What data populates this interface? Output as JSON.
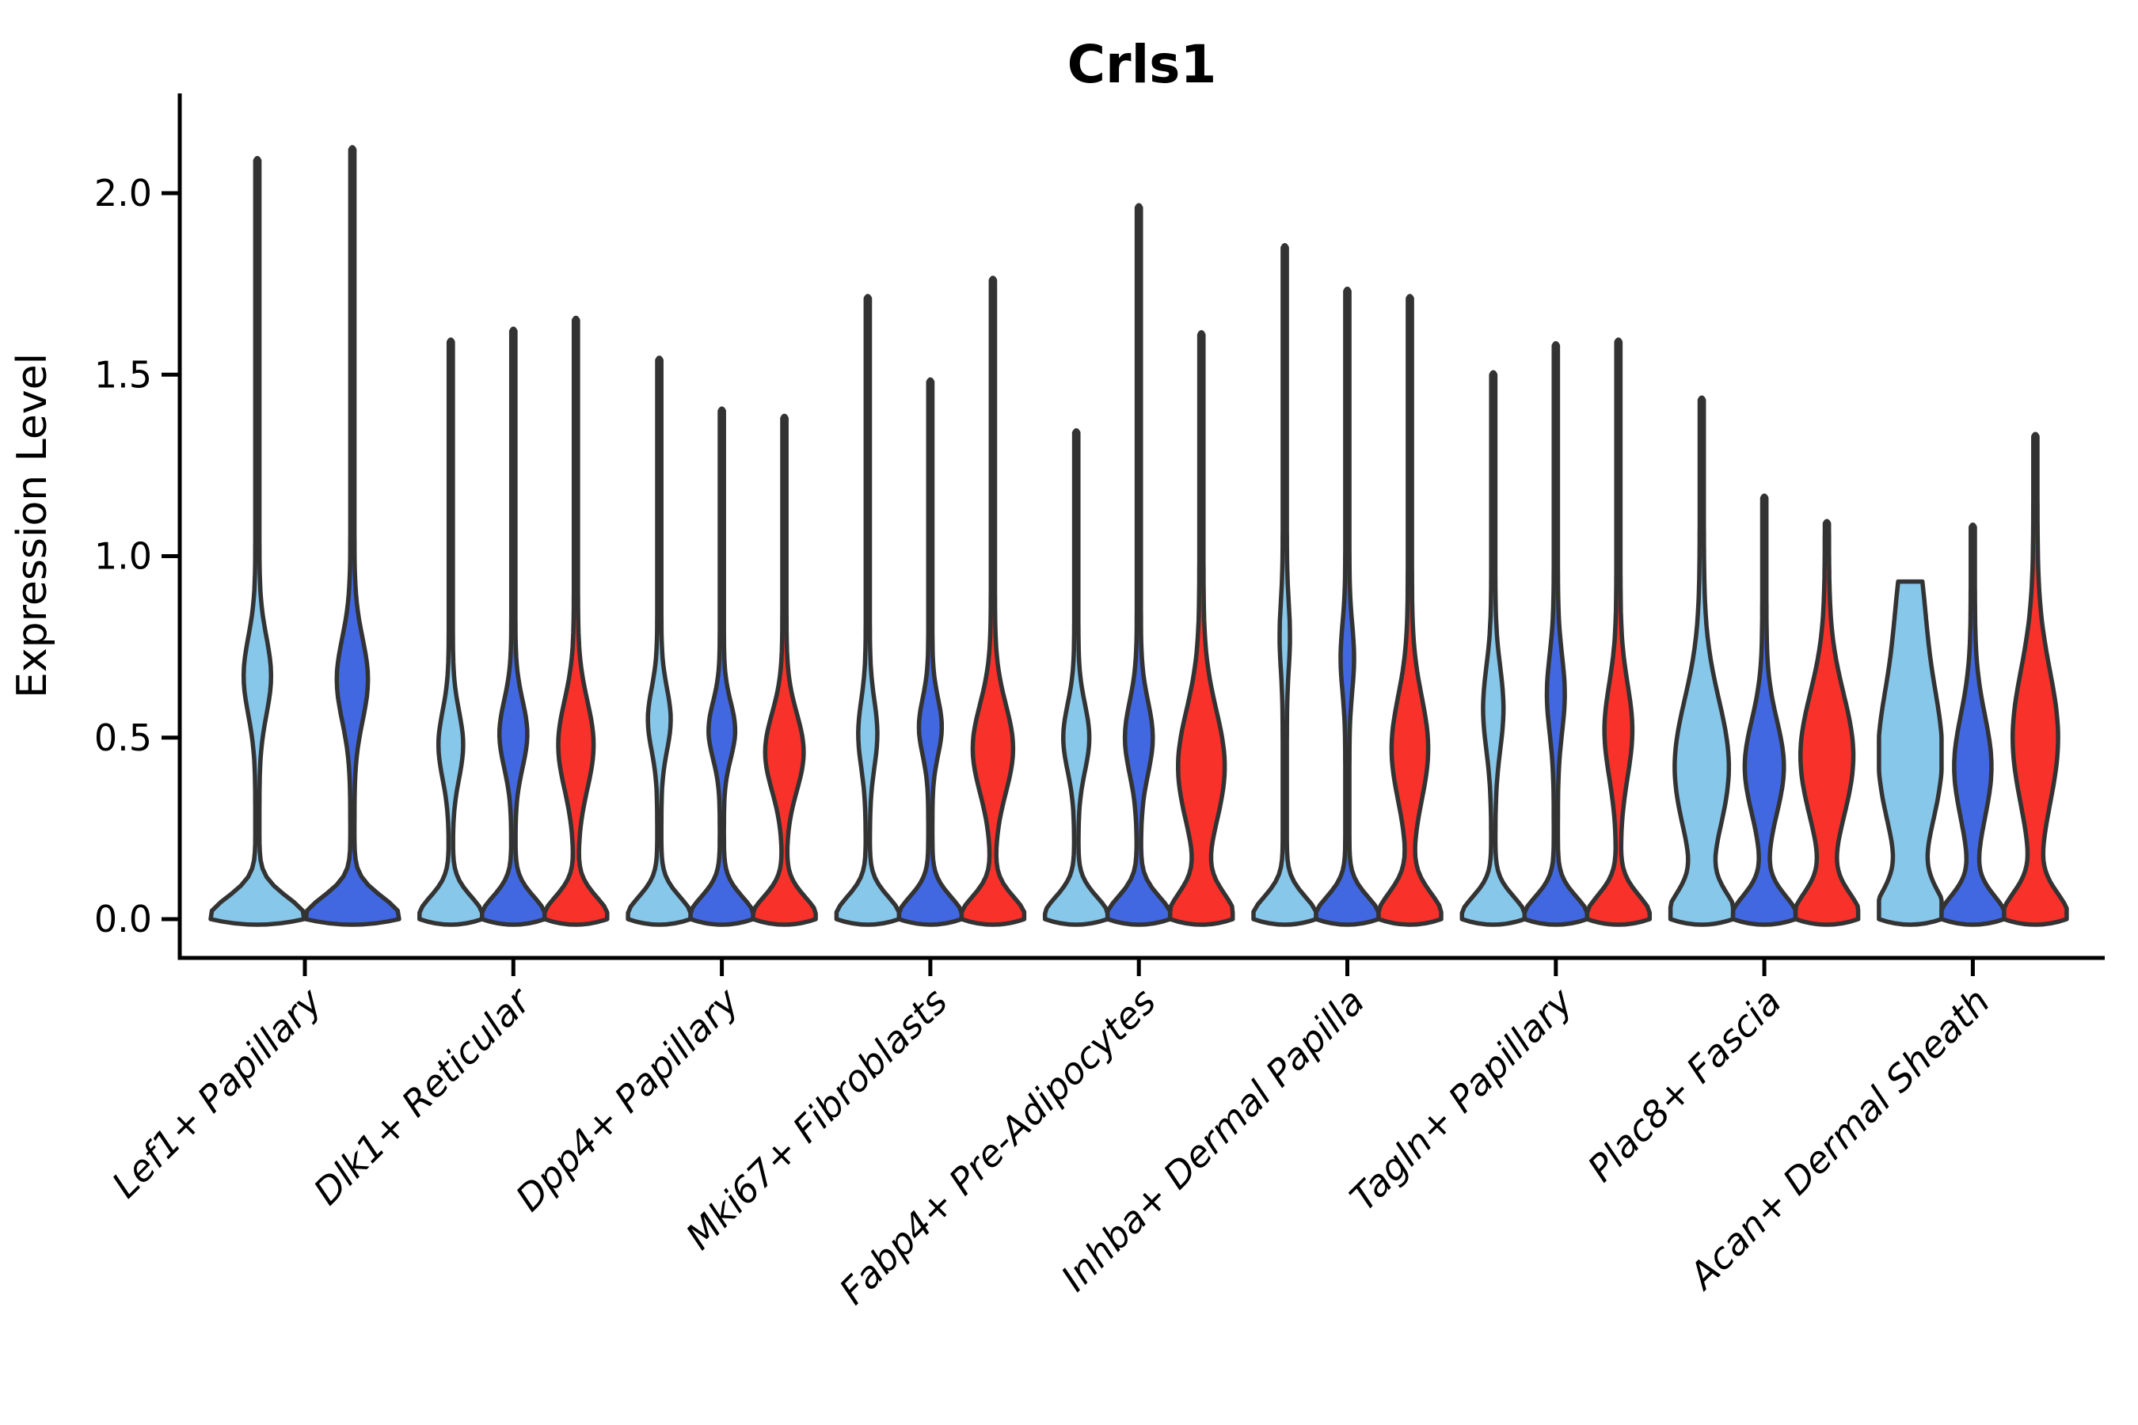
{
  "chart_data": {
    "type": "violin",
    "title": "Crls1",
    "xlabel": "",
    "ylabel": "Expression Level",
    "legend": "none",
    "grid": false,
    "ylim": [
      -0.11,
      2.27
    ],
    "ytick_values": [
      0.0,
      0.5,
      1.0,
      1.5,
      2.0
    ],
    "ytick_labels": [
      "0.0",
      "0.5",
      "1.0",
      "1.5",
      "2.0"
    ],
    "palette": {
      "light_blue": "#87C7EA",
      "dark_blue": "#4168E1",
      "red": "#F8322A",
      "outline": "#333333",
      "axis": "#000000"
    },
    "series_color_order": [
      "light_blue",
      "dark_blue",
      "red"
    ],
    "categories": [
      "Lef1+ Papillary",
      "Dlk1+ Reticular",
      "Dpp4+ Papillary",
      "Mki67+ Fibroblasts",
      "Fabp4+ Pre-Adipocytes",
      "Inhba+ Dermal Papilla",
      "Tagln+ Papillary",
      "Plac8+ Fascia",
      "Acan+ Dermal Sheath"
    ],
    "violins": [
      [
        {
          "color": "light_blue",
          "max": 2.09,
          "zero_peak": true,
          "bulges": [
            {
              "p": 0.67,
              "s": 0.15,
              "w": 0.25
            }
          ]
        },
        {
          "color": "dark_blue",
          "max": 2.12,
          "zero_peak": true,
          "bulges": [
            {
              "p": 0.66,
              "s": 0.16,
              "w": 0.29
            }
          ]
        }
      ],
      [
        {
          "color": "light_blue",
          "max": 1.59,
          "zero_peak": true,
          "bulges": [
            {
              "p": 0.48,
              "s": 0.13,
              "w": 0.33
            }
          ]
        },
        {
          "color": "dark_blue",
          "max": 1.62,
          "zero_peak": true,
          "bulges": [
            {
              "p": 0.51,
              "s": 0.13,
              "w": 0.38
            }
          ]
        },
        {
          "color": "red",
          "max": 1.65,
          "zero_peak": true,
          "bulges": [
            {
              "p": 0.48,
              "s": 0.17,
              "w": 0.5
            }
          ]
        }
      ],
      [
        {
          "color": "light_blue",
          "max": 1.54,
          "zero_peak": true,
          "bulges": [
            {
              "p": 0.55,
              "s": 0.12,
              "w": 0.3
            }
          ]
        },
        {
          "color": "dark_blue",
          "max": 1.4,
          "zero_peak": true,
          "bulges": [
            {
              "p": 0.52,
              "s": 0.11,
              "w": 0.36
            }
          ]
        },
        {
          "color": "red",
          "max": 1.38,
          "zero_peak": true,
          "bulges": [
            {
              "p": 0.46,
              "s": 0.15,
              "w": 0.55
            }
          ]
        }
      ],
      [
        {
          "color": "light_blue",
          "max": 1.71,
          "zero_peak": true,
          "bulges": [
            {
              "p": 0.51,
              "s": 0.13,
              "w": 0.24
            }
          ]
        },
        {
          "color": "dark_blue",
          "max": 1.48,
          "zero_peak": true,
          "bulges": [
            {
              "p": 0.53,
              "s": 0.11,
              "w": 0.3
            }
          ]
        },
        {
          "color": "red",
          "max": 1.76,
          "zero_peak": true,
          "bulges": [
            {
              "p": 0.47,
              "s": 0.17,
              "w": 0.58
            }
          ]
        }
      ],
      [
        {
          "color": "light_blue",
          "max": 1.34,
          "zero_peak": true,
          "bulges": [
            {
              "p": 0.5,
              "s": 0.13,
              "w": 0.35
            }
          ]
        },
        {
          "color": "dark_blue",
          "max": 1.96,
          "zero_peak": true,
          "bulges": [
            {
              "p": 0.5,
              "s": 0.14,
              "w": 0.38
            }
          ]
        },
        {
          "color": "red",
          "max": 1.61,
          "zero_peak": true,
          "bs": 0.1,
          "bulges": [
            {
              "p": 0.42,
              "s": 0.22,
              "w": 0.68
            }
          ]
        }
      ],
      [
        {
          "color": "light_blue",
          "max": 1.85,
          "zero_peak": true,
          "bulges": [
            {
              "p": 0.78,
              "s": 0.13,
              "w": 0.1
            }
          ]
        },
        {
          "color": "dark_blue",
          "max": 1.73,
          "zero_peak": true,
          "bulges": [
            {
              "p": 0.72,
              "s": 0.13,
              "w": 0.15
            }
          ]
        },
        {
          "color": "red",
          "max": 1.71,
          "zero_peak": true,
          "bs": 0.1,
          "bulges": [
            {
              "p": 0.47,
              "s": 0.2,
              "w": 0.52
            }
          ]
        }
      ],
      [
        {
          "color": "light_blue",
          "max": 1.5,
          "zero_peak": true,
          "bulges": [
            {
              "p": 0.58,
              "s": 0.16,
              "w": 0.26
            }
          ]
        },
        {
          "color": "dark_blue",
          "max": 1.58,
          "zero_peak": true,
          "bulges": [
            {
              "p": 0.62,
              "s": 0.15,
              "w": 0.22
            }
          ]
        },
        {
          "color": "red",
          "max": 1.59,
          "zero_peak": true,
          "bs": 0.09,
          "bulges": [
            {
              "p": 0.52,
              "s": 0.18,
              "w": 0.38
            }
          ]
        }
      ],
      [
        {
          "color": "light_blue",
          "max": 1.43,
          "zero_peak": true,
          "bs": 0.1,
          "bulges": [
            {
              "p": 0.42,
              "s": 0.26,
              "w": 0.8
            }
          ]
        },
        {
          "color": "dark_blue",
          "max": 1.16,
          "zero_peak": true,
          "bs": 0.09,
          "bulges": [
            {
              "p": 0.42,
              "s": 0.18,
              "w": 0.56
            }
          ]
        },
        {
          "color": "red",
          "max": 1.09,
          "zero_peak": true,
          "bs": 0.1,
          "bulges": [
            {
              "p": 0.45,
              "s": 0.24,
              "w": 0.78
            }
          ]
        }
      ],
      [
        {
          "color": "light_blue",
          "max": 0.93,
          "zero_peak": true,
          "flat": true,
          "bs": 0.11,
          "bulges": [
            {
              "p": 0.45,
              "s": 0.3,
              "w": 0.95
            },
            {
              "p": 0.88,
              "s": 0.22,
              "w": 0.26
            }
          ]
        },
        {
          "color": "dark_blue",
          "max": 1.08,
          "zero_peak": true,
          "bs": 0.09,
          "bulges": [
            {
              "p": 0.42,
              "s": 0.2,
              "w": 0.53
            }
          ]
        },
        {
          "color": "red",
          "max": 1.33,
          "zero_peak": true,
          "bs": 0.1,
          "bulges": [
            {
              "p": 0.5,
              "s": 0.26,
              "w": 0.66
            }
          ]
        }
      ]
    ]
  }
}
